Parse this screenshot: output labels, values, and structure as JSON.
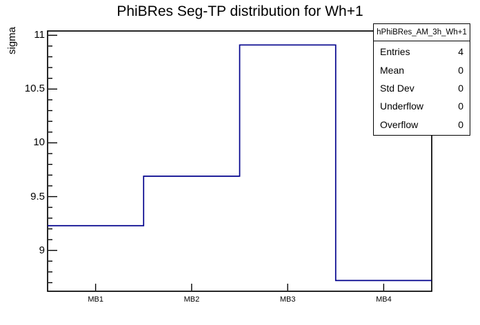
{
  "title": "PhiBRes Seg-TP distribution for Wh+1",
  "y_axis_label": "sigma",
  "stats_box": {
    "header": "hPhiBRes_AM_3h_Wh+1",
    "rows": [
      {
        "label": "Entries",
        "value": "4"
      },
      {
        "label": "Mean",
        "value": "0"
      },
      {
        "label": "Std Dev",
        "value": "0"
      },
      {
        "label": "Underflow",
        "value": "0"
      },
      {
        "label": "Overflow",
        "value": "0"
      }
    ]
  },
  "chart_data": {
    "type": "step",
    "title": "PhiBRes Seg-TP distribution for Wh+1",
    "xlabel": "",
    "ylabel": "sigma",
    "categories": [
      "MB1",
      "MB2",
      "MB3",
      "MB4"
    ],
    "values": [
      9.23,
      9.69,
      10.91,
      8.72
    ],
    "ylim": [
      8.62,
      11.04
    ],
    "y_major_ticks": [
      9,
      9.5,
      10,
      10.5,
      11
    ],
    "y_tick_labels": [
      "9",
      "9.5",
      "10",
      "10.5",
      "11"
    ],
    "y_minor_step": 0.1,
    "grid": false,
    "legend_position": "top-right-stats-box",
    "line_color": "#00008c",
    "frame_color": "#000000",
    "background_color": "#ffffff"
  }
}
